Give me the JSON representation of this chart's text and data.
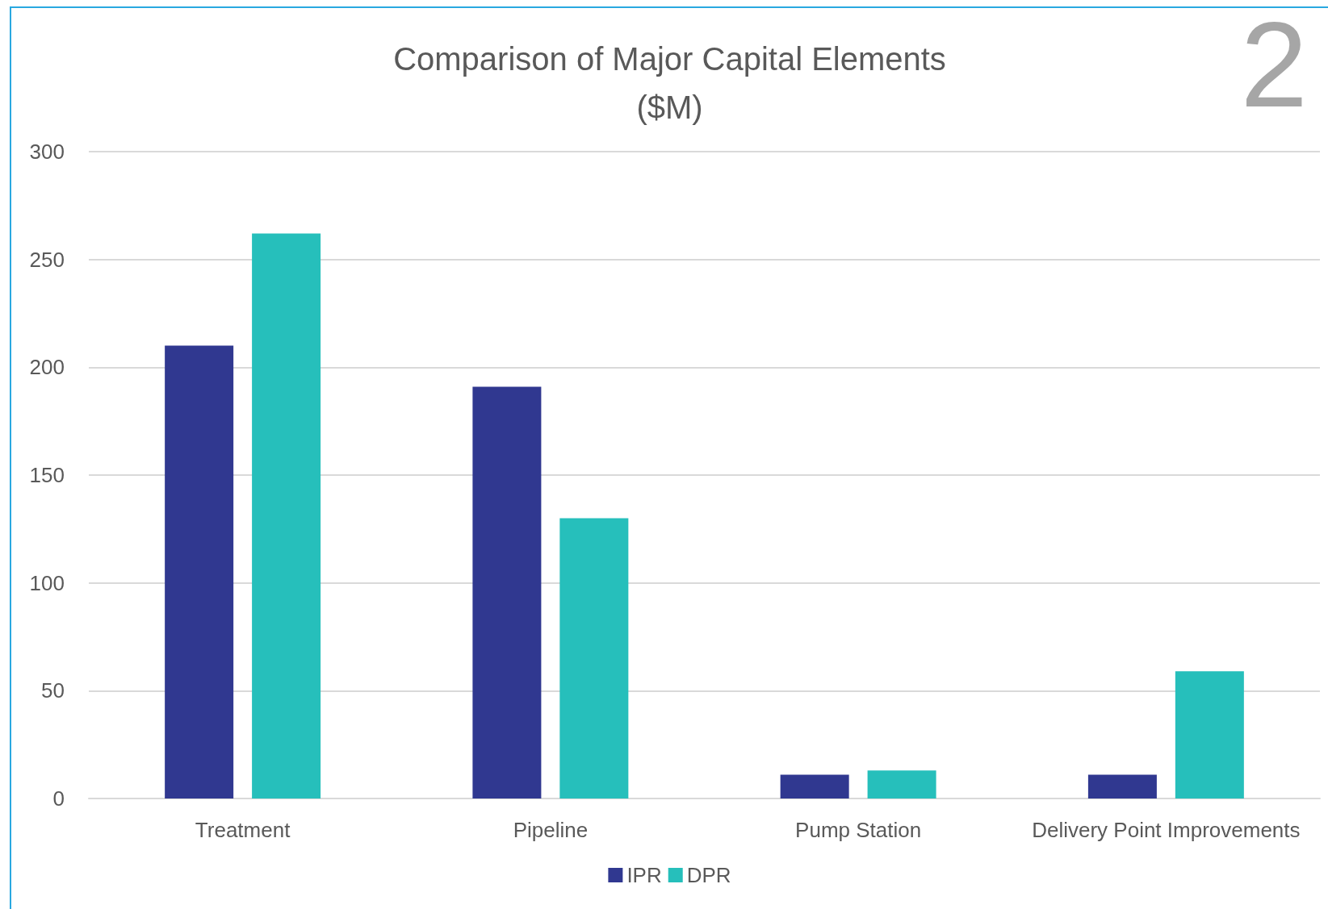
{
  "chart_data": {
    "type": "bar",
    "title": "Comparison of Major Capital Elements\n($M)",
    "categories": [
      "Treatment",
      "Pipeline",
      "Pump Station",
      "Delivery Point Improvements"
    ],
    "series": [
      {
        "name": "IPR",
        "color": "#303890",
        "values": [
          210,
          191,
          11,
          11
        ]
      },
      {
        "name": "DPR",
        "color": "#26bfbb",
        "values": [
          262,
          130,
          13,
          59
        ]
      }
    ],
    "ylim": [
      0,
      300
    ],
    "yticks": [
      0,
      50,
      100,
      150,
      200,
      250,
      300
    ],
    "grid": "y",
    "legend": "bottom",
    "annotations": [
      "2"
    ]
  }
}
